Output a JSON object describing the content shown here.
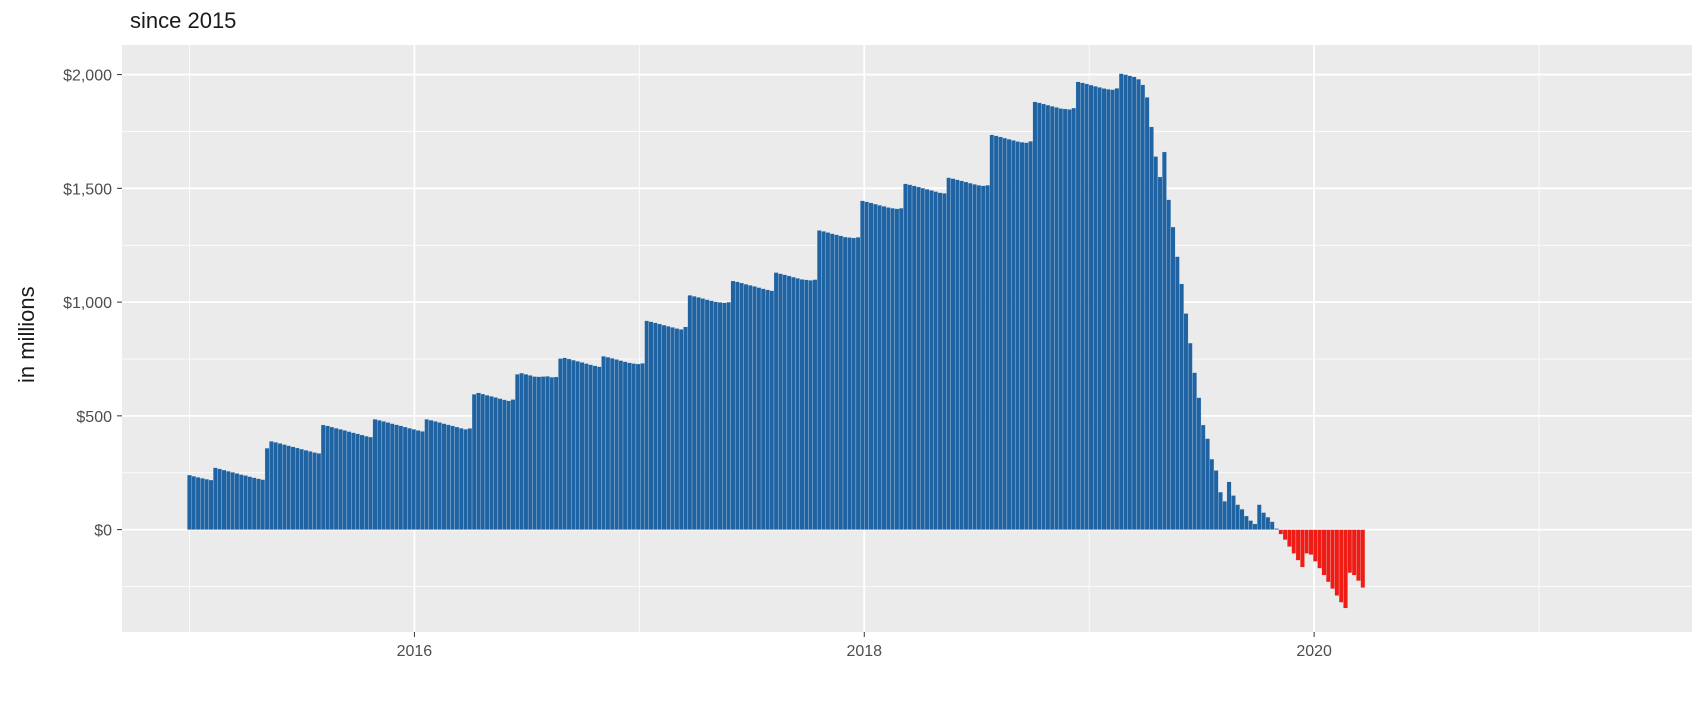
{
  "chart_data": {
    "type": "bar",
    "title": "",
    "subtitle": "since 2015",
    "xlabel": "",
    "ylabel": "in millions",
    "xlim": [
      2014.7,
      2021.68
    ],
    "ylim": [
      -450,
      2130
    ],
    "x_ticks": [
      {
        "value": 2016,
        "label": "2016"
      },
      {
        "value": 2018,
        "label": "2018"
      },
      {
        "value": 2020,
        "label": "2020"
      }
    ],
    "y_ticks": [
      {
        "value": 0,
        "label": "$0"
      },
      {
        "value": 500,
        "label": "$500"
      },
      {
        "value": 1000,
        "label": "$1,000"
      },
      {
        "value": 1500,
        "label": "$1,500"
      },
      {
        "value": 2000,
        "label": "$2,000"
      }
    ],
    "grid": true,
    "positive_color": "#1f63a3",
    "negative_color": "#ee1c14",
    "panel_color": "#ebebeb",
    "x_start": 2015.0,
    "x_step": 0.019178,
    "values": [
      240,
      235,
      230,
      226,
      222,
      218,
      272,
      267,
      262,
      257,
      252,
      247,
      242,
      238,
      233,
      228,
      224,
      220,
      358,
      388,
      384,
      379,
      374,
      369,
      364,
      359,
      354,
      349,
      344,
      339,
      335,
      460,
      456,
      451,
      446,
      441,
      436,
      431,
      426,
      421,
      416,
      411,
      407,
      485,
      481,
      476,
      471,
      466,
      461,
      456,
      451,
      446,
      441,
      436,
      432,
      485,
      481,
      476,
      471,
      466,
      461,
      456,
      451,
      446,
      441,
      445,
      595,
      601,
      596,
      591,
      586,
      581,
      576,
      571,
      566,
      572,
      683,
      688,
      683,
      678,
      673,
      672,
      673,
      674,
      670,
      671,
      752,
      755,
      750,
      745,
      740,
      735,
      730,
      725,
      720,
      716,
      762,
      758,
      753,
      748,
      743,
      738,
      733,
      730,
      728,
      731,
      918,
      914,
      909,
      904,
      899,
      894,
      889,
      884,
      880,
      891,
      1030,
      1026,
      1021,
      1016,
      1011,
      1006,
      1001,
      999,
      997,
      1000,
      1093,
      1089,
      1084,
      1079,
      1074,
      1069,
      1064,
      1059,
      1054,
      1050,
      1130,
      1125,
      1120,
      1115,
      1110,
      1105,
      1100,
      1098,
      1096,
      1099,
      1315,
      1311,
      1306,
      1301,
      1296,
      1291,
      1286,
      1284,
      1282,
      1285,
      1445,
      1441,
      1436,
      1431,
      1426,
      1421,
      1416,
      1413,
      1410,
      1413,
      1520,
      1516,
      1511,
      1506,
      1501,
      1496,
      1491,
      1486,
      1481,
      1478,
      1547,
      1543,
      1538,
      1533,
      1528,
      1523,
      1518,
      1514,
      1511,
      1514,
      1735,
      1731,
      1726,
      1721,
      1716,
      1711,
      1706,
      1703,
      1701,
      1707,
      1880,
      1876,
      1871,
      1866,
      1861,
      1856,
      1851,
      1849,
      1847,
      1853,
      1968,
      1964,
      1959,
      1954,
      1949,
      1944,
      1939,
      1936,
      1934,
      1940,
      2004,
      2000,
      1995,
      1990,
      1980,
      1955,
      1900,
      1770,
      1640,
      1550,
      1660,
      1450,
      1330,
      1200,
      1080,
      950,
      820,
      690,
      580,
      460,
      400,
      310,
      260,
      165,
      125,
      210,
      150,
      110,
      90,
      60,
      40,
      25,
      110,
      75,
      55,
      35,
      5,
      -20,
      -45,
      -75,
      -105,
      -135,
      -165,
      -105,
      -110,
      -140,
      -170,
      -200,
      -230,
      -260,
      -290,
      -320,
      -345,
      -190,
      -200,
      -225,
      -255
    ]
  }
}
